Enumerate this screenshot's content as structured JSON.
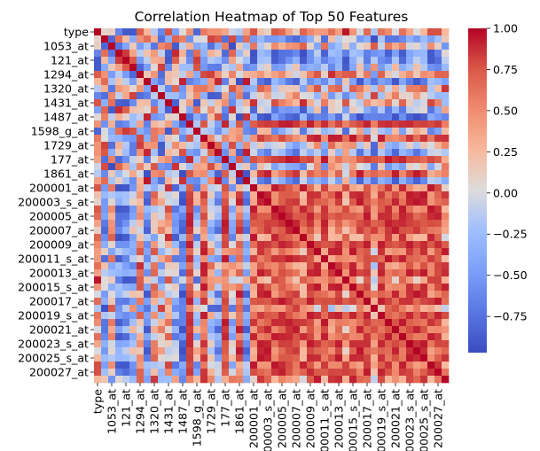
{
  "chart_data": {
    "type": "heatmap",
    "title": "Correlation Heatmap of Top 50 Features",
    "colormap": "coolwarm",
    "labels_shown": [
      "type",
      "1053_at",
      "121_at",
      "1294_at",
      "1320_at",
      "1431_at",
      "1487_at",
      "1598_g_at",
      "1729_at",
      "177_at",
      "1861_at",
      "200001_at",
      "200003_s_at",
      "200005_at",
      "200007_at",
      "200009_at",
      "200011_s_at",
      "200013_at",
      "200015_s_at",
      "200017_at",
      "200019_s_at",
      "200021_at",
      "200023_s_at",
      "200025_s_at",
      "200027_at"
    ],
    "matrix_size": 50,
    "label_every": 2,
    "diagonal_value": 1.0,
    "seed": 20240611,
    "colorbar": {
      "vmin": -0.97,
      "vmax": 1.0,
      "ticks": [
        1.0,
        0.75,
        0.5,
        0.25,
        0.0,
        -0.25,
        -0.5,
        -0.75
      ],
      "tick_labels": [
        "1.00",
        "0.75",
        "0.50",
        "0.25",
        "0.00",
        "−0.25",
        "−0.50",
        "−0.75"
      ]
    },
    "colors": {
      "low": "#3b4cc0",
      "mid": "#dddcdc",
      "high": "#b40426"
    }
  }
}
